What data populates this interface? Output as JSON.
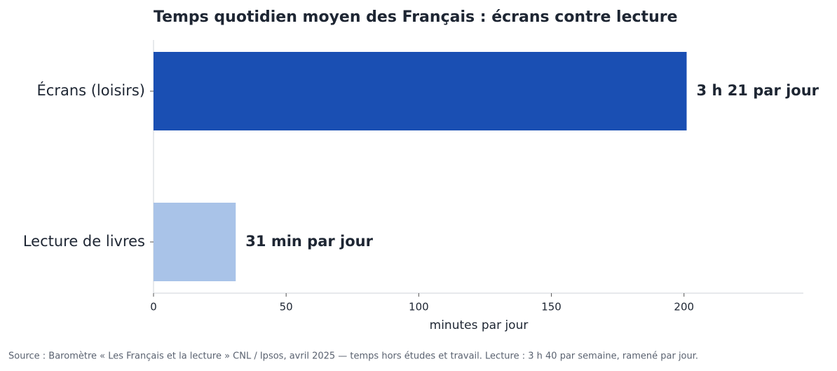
{
  "chart_data": {
    "type": "hbar",
    "title": "Temps quotidien moyen des Français : écrans contre lecture",
    "categories": [
      "Écrans (loisirs)",
      "Lecture de livres"
    ],
    "values": [
      201,
      31
    ],
    "value_labels": [
      "3 h 21 par jour",
      "31 min par jour"
    ],
    "colors": [
      "#1a4fb3",
      "#a9c3e8"
    ],
    "xlabel": "minutes par jour",
    "xlim": [
      0,
      245
    ],
    "xticks": [
      0,
      50,
      100,
      150,
      200
    ],
    "source": "Source : Baromètre « Les Français et la lecture » CNL / Ipsos, avril 2025 — temps hors études et travail. Lecture : 3 h 40 par semaine, ramené par jour."
  }
}
